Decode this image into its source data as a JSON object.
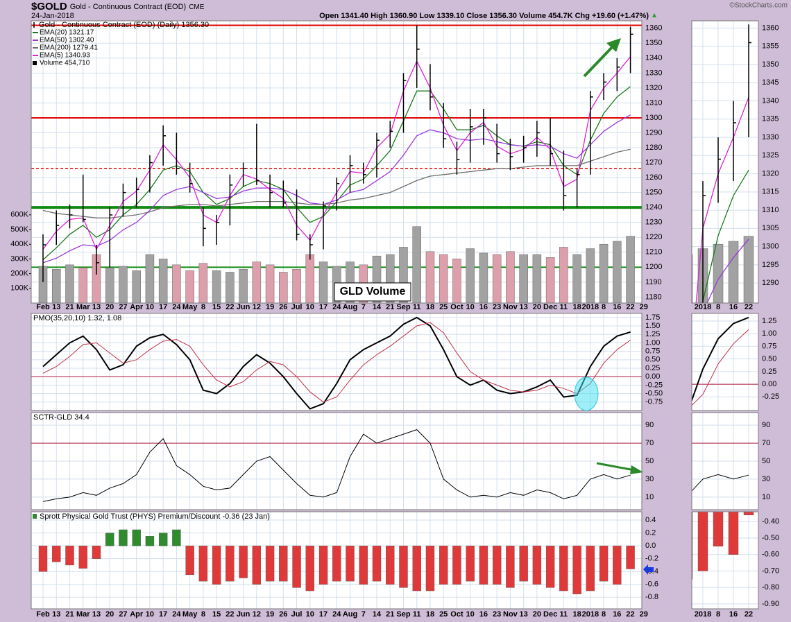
{
  "header": {
    "symbol": "$GOLD",
    "name": "Gold - Continuous Contract (EOD)",
    "exchange": "CME",
    "date": "24-Jan-2018",
    "quote": "Open 1341.40 High 1360.90 Low 1339.10 Close 1356.30 Volume 454.7K Chg +19.60 (+1.47%)",
    "credit": "©StockCharts.com"
  },
  "chart_data": [
    {
      "type": "ohlc",
      "title": "Gold - Continuous Contract (EOD) (Daily) 1356.30",
      "color": "#000000",
      "categories": [
        "Feb",
        "13",
        "21",
        "Mar",
        "13",
        "20",
        "27",
        "Apr",
        "10",
        "17",
        "24",
        "May",
        "8",
        "15",
        "22",
        "Jun",
        "12",
        "19",
        "26",
        "Jul",
        "10",
        "17",
        "24",
        "Aug",
        "7",
        "14",
        "21",
        "Sep",
        "11",
        "18",
        "25",
        "Oct",
        "10",
        "16",
        "23",
        "Nov",
        "13",
        "20",
        "Dec",
        "11",
        "18",
        "2018",
        "8",
        "16",
        "22",
        "29"
      ],
      "high": [
        1222,
        1238,
        1242,
        1262,
        1215,
        1240,
        1256,
        1260,
        1275,
        1295,
        1290,
        1270,
        1240,
        1235,
        1262,
        1270,
        1296,
        1262,
        1258,
        1252,
        1222,
        1244,
        1260,
        1275,
        1270,
        1290,
        1298,
        1330,
        1362,
        1336,
        1310,
        1284,
        1306,
        1306,
        1296,
        1286,
        1288,
        1298,
        1300,
        1278,
        1266,
        1318,
        1330,
        1340,
        1361,
        null
      ],
      "low": [
        1190,
        1215,
        1226,
        1230,
        1195,
        1200,
        1234,
        1240,
        1250,
        1268,
        1262,
        1250,
        1214,
        1215,
        1228,
        1254,
        1255,
        1240,
        1240,
        1218,
        1205,
        1212,
        1238,
        1250,
        1256,
        1260,
        1280,
        1290,
        1320,
        1305,
        1280,
        1262,
        1270,
        1282,
        1270,
        1265,
        1270,
        1274,
        1268,
        1238,
        1240,
        1262,
        1312,
        1318,
        1330,
        null
      ],
      "close": [
        1215,
        1228,
        1235,
        1232,
        1203,
        1235,
        1250,
        1252,
        1270,
        1288,
        1266,
        1256,
        1226,
        1230,
        1255,
        1266,
        1258,
        1250,
        1243,
        1222,
        1215,
        1241,
        1256,
        1268,
        1262,
        1285,
        1291,
        1325,
        1346,
        1314,
        1286,
        1272,
        1294,
        1300,
        1276,
        1274,
        1280,
        1290,
        1276,
        1248,
        1262,
        1314,
        1324,
        1334,
        1356,
        null
      ],
      "series": [
        {
          "name": "EMA(20) 1321.17",
          "color": "#1a7a1a",
          "values": [
            1205,
            1213,
            1222,
            1228,
            1220,
            1225,
            1235,
            1242,
            1252,
            1265,
            1268,
            1264,
            1250,
            1242,
            1246,
            1254,
            1258,
            1256,
            1252,
            1240,
            1230,
            1234,
            1244,
            1255,
            1259,
            1268,
            1278,
            1298,
            1318,
            1318,
            1306,
            1292,
            1292,
            1295,
            1288,
            1282,
            1281,
            1284,
            1282,
            1268,
            1262,
            1285,
            1303,
            1314,
            1321,
            null
          ]
        },
        {
          "name": "EMA(50) 1302.40",
          "color": "#9a3ad8",
          "values": [
            1203,
            1206,
            1211,
            1215,
            1214,
            1218,
            1225,
            1230,
            1238,
            1248,
            1252,
            1254,
            1250,
            1246,
            1247,
            1251,
            1253,
            1253,
            1252,
            1248,
            1243,
            1242,
            1245,
            1250,
            1252,
            1258,
            1264,
            1275,
            1288,
            1292,
            1290,
            1286,
            1285,
            1286,
            1284,
            1282,
            1281,
            1282,
            1281,
            1276,
            1273,
            1282,
            1291,
            1297,
            1302,
            null
          ]
        },
        {
          "name": "EMA(200) 1279.41",
          "color": "#6e6e6e",
          "values": [
            1238,
            1236,
            1235,
            1234,
            1233,
            1233,
            1234,
            1235,
            1237,
            1240,
            1241,
            1242,
            1242,
            1241,
            1242,
            1243,
            1244,
            1244,
            1244,
            1243,
            1242,
            1242,
            1243,
            1245,
            1246,
            1248,
            1250,
            1254,
            1258,
            1261,
            1262,
            1263,
            1264,
            1265,
            1266,
            1266,
            1267,
            1268,
            1268,
            1268,
            1268,
            1271,
            1274,
            1277,
            1279,
            null
          ]
        },
        {
          "name": "EMA(5) 1340.93",
          "color": "#e020d8",
          "values": [
            1212,
            1224,
            1232,
            1233,
            1212,
            1228,
            1244,
            1251,
            1265,
            1282,
            1272,
            1260,
            1235,
            1230,
            1248,
            1262,
            1259,
            1252,
            1246,
            1228,
            1218,
            1235,
            1250,
            1264,
            1263,
            1280,
            1289,
            1318,
            1338,
            1320,
            1295,
            1278,
            1290,
            1297,
            1281,
            1276,
            1279,
            1287,
            1279,
            1254,
            1259,
            1305,
            1320,
            1330,
            1341,
            null
          ]
        }
      ],
      "volume": {
        "name": "Volume 454,710",
        "up_color": "#a2a2a2",
        "down_color": "#dc9fab",
        "values": [
          250000,
          230000,
          260000,
          240000,
          330000,
          240000,
          250000,
          220000,
          330000,
          300000,
          260000,
          220000,
          270000,
          220000,
          210000,
          230000,
          280000,
          260000,
          210000,
          230000,
          330000,
          280000,
          250000,
          280000,
          260000,
          320000,
          330000,
          380000,
          520000,
          350000,
          330000,
          300000,
          370000,
          340000,
          330000,
          350000,
          330000,
          330000,
          310000,
          380000,
          330000,
          370000,
          400000,
          420000,
          454710,
          null
        ],
        "ylim": [
          0,
          1920000
        ],
        "yticks": [
          {
            "value": 100000,
            "label": "100K"
          },
          {
            "value": 200000,
            "label": "200K"
          },
          {
            "value": 300000,
            "label": "300K"
          },
          {
            "value": 400000,
            "label": "400K"
          },
          {
            "value": 500000,
            "label": "500K"
          },
          {
            "value": 600000,
            "label": "600K"
          }
        ]
      },
      "ylim": [
        1176,
        1365
      ],
      "yticks": [
        1180,
        1190,
        1200,
        1210,
        1220,
        1230,
        1240,
        1250,
        1260,
        1270,
        1280,
        1290,
        1300,
        1310,
        1320,
        1330,
        1340,
        1350,
        1360
      ],
      "hlines": [
        {
          "value": 1362,
          "color": "#e00000",
          "width": 2
        },
        {
          "value": 1300,
          "color": "#e00000",
          "width": 2
        },
        {
          "value": 1266,
          "color": "#e00000",
          "width": 1.5,
          "dashed": true
        },
        {
          "value": 1240,
          "color": "#108a10",
          "width": 4
        },
        {
          "value": 1200,
          "color": "#108a10",
          "width": 2
        }
      ],
      "annotation": "GLD Volume",
      "zoom": {
        "categories": [
          "2018",
          "8",
          "16",
          "22"
        ],
        "ylim": [
          1284.5,
          1362
        ],
        "yticks": [
          1290,
          1295,
          1300,
          1305,
          1310,
          1315,
          1320,
          1325,
          1330,
          1335,
          1340,
          1345,
          1350,
          1355,
          1360
        ]
      }
    },
    {
      "type": "line",
      "title": "PMO(35,20,10) 1.32, 1.08",
      "series": [
        {
          "color": "#000000",
          "width": 2,
          "values": [
            0.3,
            0.65,
            1,
            1.2,
            0.8,
            0.2,
            0.35,
            0.9,
            1.15,
            1.25,
            0.95,
            0.5,
            -0.4,
            -0.5,
            -0.2,
            0.3,
            0.65,
            0.4,
            0,
            -0.5,
            -0.95,
            -0.8,
            -0.2,
            0.5,
            0.8,
            1,
            1.2,
            1.55,
            1.75,
            1.5,
            0.8,
            0,
            -0.25,
            -0.1,
            -0.4,
            -0.5,
            -0.45,
            -0.3,
            -0.1,
            -0.6,
            -0.55,
            0.3,
            0.9,
            1.2,
            1.32,
            null
          ]
        },
        {
          "color": "#c03048",
          "width": 1,
          "values": [
            0.1,
            0.3,
            0.6,
            0.95,
            1,
            0.7,
            0.4,
            0.5,
            0.8,
            1.05,
            1.1,
            0.9,
            0.35,
            -0.1,
            -0.3,
            -0.15,
            0.2,
            0.45,
            0.35,
            0,
            -0.45,
            -0.75,
            -0.6,
            -0.1,
            0.35,
            0.65,
            0.9,
            1.2,
            1.5,
            1.6,
            1.3,
            0.7,
            0.15,
            -0.1,
            -0.25,
            -0.4,
            -0.45,
            -0.4,
            -0.25,
            -0.35,
            -0.5,
            -0.2,
            0.4,
            0.8,
            1.08,
            null
          ]
        }
      ],
      "ylim": [
        -1,
        1.87
      ],
      "yticks": [
        -0.75,
        {
          "value": -0.5,
          "label": "-0.50"
        },
        -0.25,
        {
          "value": 0,
          "label": "0.00"
        },
        0.25,
        {
          "value": 0.5,
          "label": "0.50"
        },
        0.75,
        {
          "value": 1,
          "label": "1.00"
        },
        1.25,
        {
          "value": 1.5,
          "label": "1.50"
        },
        1.75
      ],
      "hlines": [
        {
          "value": 0,
          "color": "#b02040",
          "width": 1
        }
      ],
      "zoom": {
        "ylim": [
          -0.52,
          1.4
        ],
        "yticks": [
          -0.25,
          {
            "value": 0,
            "label": "0.00"
          },
          0.25,
          {
            "value": 0.5,
            "label": "0.50"
          },
          0.75,
          {
            "value": 1,
            "label": "1.00"
          },
          1.25
        ]
      }
    },
    {
      "type": "line",
      "title": "SCTR-GLD 34.4",
      "series": [
        {
          "color": "#000000",
          "width": 1,
          "values": [
            5,
            8,
            10,
            15,
            12,
            20,
            25,
            35,
            60,
            75,
            45,
            35,
            22,
            18,
            20,
            35,
            50,
            55,
            40,
            25,
            12,
            10,
            15,
            55,
            80,
            70,
            75,
            80,
            85,
            70,
            30,
            18,
            10,
            12,
            10,
            15,
            12,
            18,
            15,
            8,
            12,
            30,
            35,
            30,
            34.4,
            null
          ]
        }
      ],
      "ylim": [
        -4,
        104
      ],
      "yticks": [
        10,
        30,
        50,
        70,
        90
      ],
      "hlines": [
        {
          "value": 70,
          "color": "#b02040",
          "width": 1
        }
      ],
      "zoom": {
        "ylim": [
          -4,
          104
        ],
        "yticks": [
          10,
          30,
          50,
          70,
          90
        ]
      }
    },
    {
      "type": "bar",
      "title": "Sprott Physical Gold Trust (PHYS) Premium/Discount -0.36 (23 Jan)",
      "categories": [
        "Feb",
        "13",
        "21",
        "Mar",
        "13",
        "20",
        "27",
        "Apr",
        "10",
        "17",
        "24",
        "May",
        "8",
        "15",
        "22",
        "Jun",
        "12",
        "19",
        "26",
        "Jul",
        "10",
        "17",
        "24",
        "Aug",
        "7",
        "14",
        "21",
        "Sep",
        "11",
        "18",
        "25",
        "Oct",
        "10",
        "16",
        "23",
        "Nov",
        "13",
        "20",
        "Dec",
        "11",
        "18",
        "2018",
        "8",
        "16",
        "22",
        "29"
      ],
      "values": [
        -0.4,
        -0.25,
        -0.3,
        -0.35,
        -0.2,
        0.2,
        0.25,
        0.25,
        0.15,
        0.2,
        0.25,
        -0.45,
        -0.55,
        -0.6,
        -0.55,
        -0.5,
        -0.6,
        -0.55,
        -0.55,
        -0.65,
        -0.7,
        -0.6,
        -0.55,
        -0.55,
        -0.6,
        -0.55,
        -0.6,
        -0.65,
        -0.7,
        -0.7,
        -0.6,
        -0.6,
        -0.55,
        -0.6,
        -0.6,
        -0.65,
        -0.55,
        -0.6,
        -0.65,
        -0.7,
        -0.75,
        -0.7,
        -0.55,
        -0.6,
        -0.36,
        null
      ],
      "positive_color": "#2e8b2e",
      "negative_color": "#e0393a",
      "ylim": [
        -0.98,
        0.53
      ],
      "yticks": [
        -0.8,
        -0.6,
        -0.4,
        -0.2,
        {
          "value": 0,
          "label": "0.0"
        },
        0.2,
        0.4
      ],
      "zoom": {
        "categories": [
          "2018",
          "8",
          "16",
          "22"
        ],
        "ylim": [
          -0.93,
          -0.34
        ],
        "yticks": [
          {
            "value": -0.9,
            "label": "-0.90"
          },
          {
            "value": -0.8,
            "label": "-0.80"
          },
          {
            "value": -0.7,
            "label": "-0.70"
          },
          {
            "value": -0.6,
            "label": "-0.60"
          },
          {
            "value": -0.5,
            "label": "-0.50"
          },
          {
            "value": -0.4,
            "label": "-0.40"
          }
        ]
      }
    }
  ]
}
